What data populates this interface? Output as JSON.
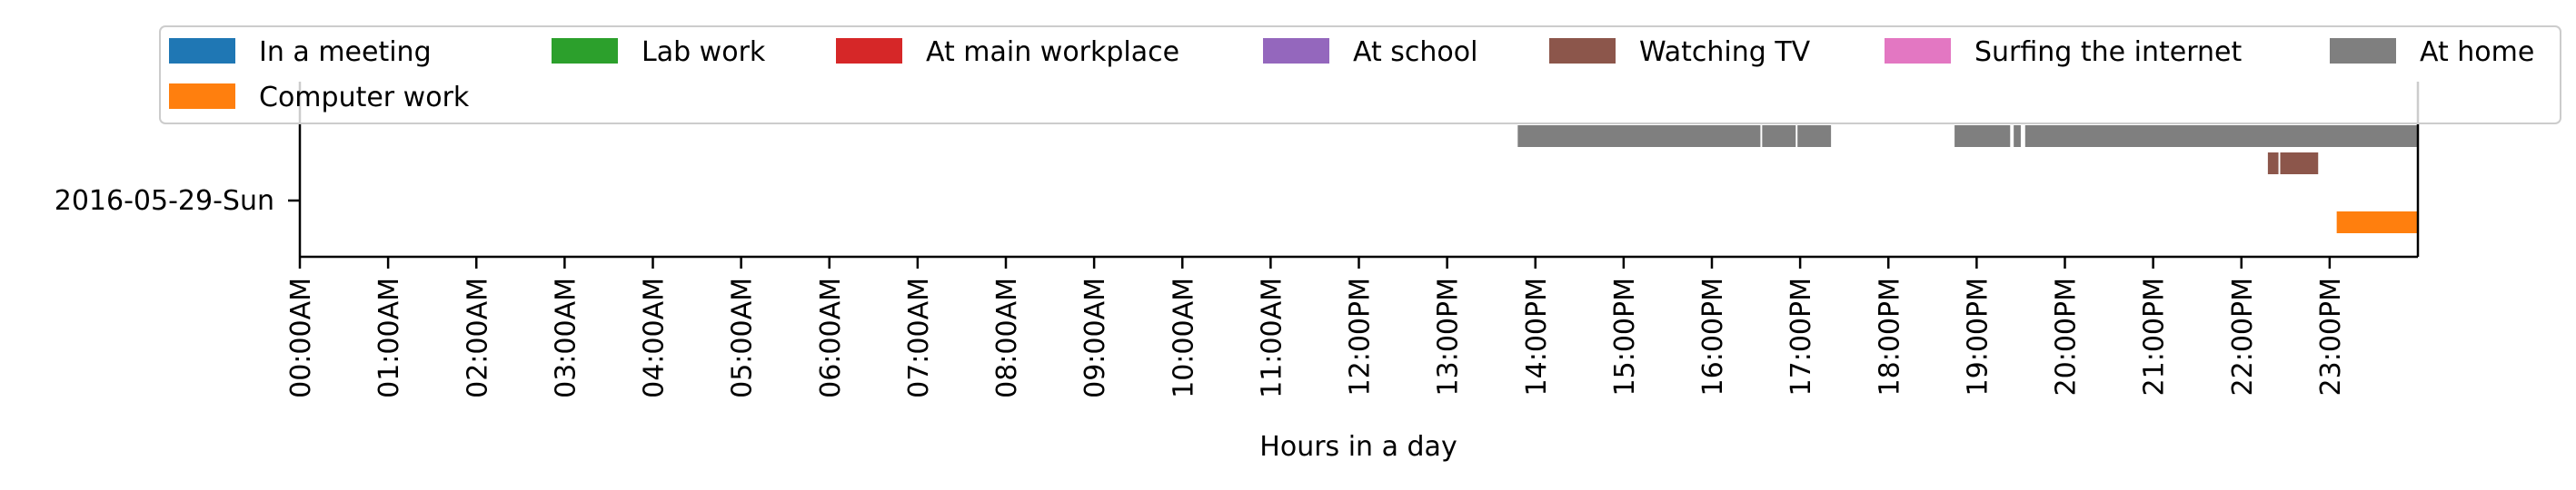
{
  "chart_data": {
    "type": "timeline",
    "xlabel": "Hours in a day",
    "xlim": [
      0,
      24
    ],
    "x_unit": "hours",
    "x_tick_labels": [
      "00:00AM",
      "01:00AM",
      "02:00AM",
      "03:00AM",
      "04:00AM",
      "05:00AM",
      "06:00AM",
      "07:00AM",
      "08:00AM",
      "09:00AM",
      "10:00AM",
      "11:00AM",
      "12:00PM",
      "13:00PM",
      "14:00PM",
      "15:00PM",
      "16:00PM",
      "17:00PM",
      "18:00PM",
      "19:00PM",
      "20:00PM",
      "21:00PM",
      "22:00PM",
      "23:00PM"
    ],
    "y_categories": [
      "2016-05-29-Sun"
    ],
    "legend_position": "top",
    "legend": [
      {
        "label": "In a meeting",
        "color": "#1f77b4"
      },
      {
        "label": "Lab work",
        "color": "#2ca02c"
      },
      {
        "label": "At main workplace",
        "color": "#d62728"
      },
      {
        "label": "At school",
        "color": "#9467bd"
      },
      {
        "label": "Watching TV",
        "color": "#8c564b"
      },
      {
        "label": "Surfing the internet",
        "color": "#e377c2"
      },
      {
        "label": "At home",
        "color": "#7f7f7f"
      },
      {
        "label": "Computer work",
        "color": "#ff7f0e"
      }
    ],
    "series": [
      {
        "name": "At home",
        "color": "#7f7f7f",
        "lane": 0,
        "intervals": [
          [
            13.8,
            16.55
          ],
          [
            16.57,
            16.95
          ],
          [
            16.97,
            17.35
          ],
          [
            18.75,
            19.38
          ],
          [
            19.42,
            19.5
          ],
          [
            19.55,
            24.0
          ]
        ]
      },
      {
        "name": "Watching TV",
        "color": "#8c564b",
        "lane": 1,
        "intervals": [
          [
            22.3,
            22.42
          ],
          [
            22.44,
            22.87
          ]
        ]
      },
      {
        "name": "Computer work",
        "color": "#ff7f0e",
        "lane": 2,
        "intervals": [
          [
            23.08,
            24.0
          ]
        ]
      }
    ]
  }
}
